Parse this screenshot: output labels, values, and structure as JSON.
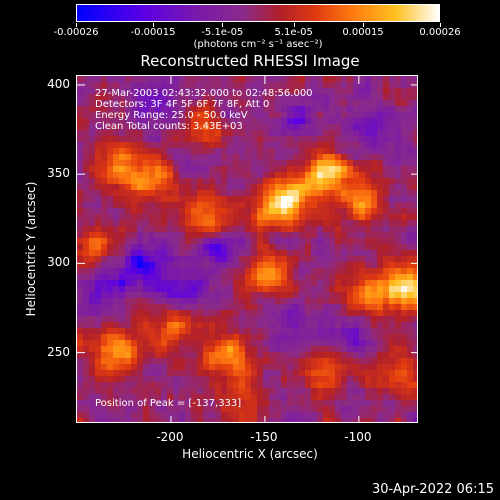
{
  "chart_data": {
    "type": "heatmap",
    "title": "Reconstructed RHESSI Image",
    "xlabel": "Heliocentric X (arcsec)",
    "ylabel": "Heliocentric Y (arcsec)",
    "xlim": [
      -250,
      -68
    ],
    "ylim": [
      210,
      405
    ],
    "x_ticks": [
      "-200",
      "-150",
      "-100"
    ],
    "y_ticks": [
      "250",
      "300",
      "350",
      "400"
    ],
    "colorbar": {
      "tick_labels": [
        "-0.00026",
        "-0.00015",
        "-5.1e-05",
        "5.1e-05",
        "0.00015",
        "0.00026"
      ],
      "unit": "(photons cm⁻² s⁻¹ asec⁻²)",
      "range": [
        -0.00026,
        0.00026
      ],
      "colors": [
        "#0000ff",
        "#5a00e6",
        "#7a1aa8",
        "#8a2a8a",
        "#b0202a",
        "#e03a10",
        "#ff7a10",
        "#ffc020",
        "#ffffff"
      ]
    },
    "annotations": {
      "time_range": "27-Mar-2003 02:43:32.000 to 02:48:56.000",
      "detectors": "Detectors: 3F 4F 5F 6F 7F 8F, Att 0",
      "energy_range": "Energy Range: 25.0 - 50.0 keV",
      "clean_counts": "Clean     Total counts: 3.43E+03",
      "peak_position": "Position of Peak = [-137,333]"
    },
    "peak": {
      "x": -137,
      "y": 333
    },
    "bright_sources": [
      {
        "x": -138,
        "y": 335,
        "intensity": 1.0
      },
      {
        "x": -118,
        "y": 352,
        "intensity": 0.85
      },
      {
        "x": -158,
        "y": 322,
        "intensity": 0.7
      },
      {
        "x": -182,
        "y": 326,
        "intensity": 0.7
      },
      {
        "x": -228,
        "y": 355,
        "intensity": 0.6
      },
      {
        "x": -210,
        "y": 345,
        "intensity": 0.55
      },
      {
        "x": -100,
        "y": 335,
        "intensity": 0.6
      },
      {
        "x": -75,
        "y": 288,
        "intensity": 0.8
      },
      {
        "x": -95,
        "y": 282,
        "intensity": 0.6
      },
      {
        "x": -150,
        "y": 292,
        "intensity": 0.55
      },
      {
        "x": -230,
        "y": 250,
        "intensity": 0.6
      },
      {
        "x": -200,
        "y": 265,
        "intensity": 0.5
      },
      {
        "x": -170,
        "y": 248,
        "intensity": 0.55
      },
      {
        "x": -80,
        "y": 238,
        "intensity": 0.5
      },
      {
        "x": -120,
        "y": 240,
        "intensity": 0.45
      },
      {
        "x": -240,
        "y": 310,
        "intensity": 0.5
      },
      {
        "x": -185,
        "y": 380,
        "intensity": 0.4
      },
      {
        "x": -160,
        "y": 225,
        "intensity": 0.4
      }
    ],
    "dark_sources": [
      {
        "x": -205,
        "y": 390,
        "depth": 0.8
      },
      {
        "x": -175,
        "y": 310,
        "depth": 0.8
      },
      {
        "x": -160,
        "y": 320,
        "depth": 0.9
      },
      {
        "x": -215,
        "y": 300,
        "depth": 0.7
      },
      {
        "x": -195,
        "y": 285,
        "depth": 0.7
      },
      {
        "x": -130,
        "y": 380,
        "depth": 0.6
      },
      {
        "x": -105,
        "y": 260,
        "depth": 0.6
      },
      {
        "x": -235,
        "y": 285,
        "depth": 0.6
      },
      {
        "x": -140,
        "y": 265,
        "depth": 0.5
      },
      {
        "x": -90,
        "y": 370,
        "depth": 0.5
      }
    ]
  },
  "footer": {
    "timestamp": "30-Apr-2022 06:15"
  }
}
